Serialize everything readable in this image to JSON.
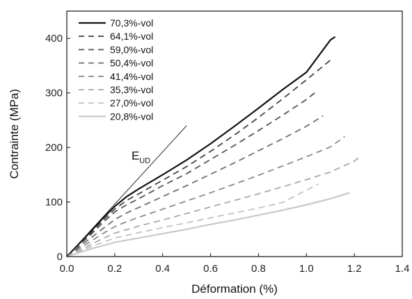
{
  "chart_data": {
    "type": "line",
    "title": "",
    "xlabel": "Déformation (%)",
    "ylabel": "Contrainte (MPa)",
    "xlim": [
      0,
      1.4
    ],
    "ylim": [
      0,
      450
    ],
    "xticks": [
      "0.0",
      "0.2",
      "0.4",
      "0.6",
      "0.8",
      "1.0",
      "1.2",
      "1.4"
    ],
    "yticks": [
      "0",
      "100",
      "200",
      "300",
      "400"
    ],
    "legend_position": "top-left",
    "grid": false,
    "series": [
      {
        "name": "70,3%-vol",
        "color": "#111111",
        "dash": "solid",
        "x": [
          0,
          0.05,
          0.1,
          0.15,
          0.2,
          0.25,
          0.3,
          0.4,
          0.5,
          0.6,
          0.7,
          0.8,
          0.9,
          1.0,
          1.1,
          1.12
        ],
        "y": [
          0,
          23,
          46,
          70,
          92,
          110,
          124,
          150,
          177,
          207,
          239,
          272,
          306,
          338,
          397,
          403
        ]
      },
      {
        "name": "64,1%-vol",
        "color": "#444444",
        "dash": "dashed",
        "x": [
          0,
          0.05,
          0.1,
          0.15,
          0.2,
          0.25,
          0.3,
          0.4,
          0.5,
          0.6,
          0.7,
          0.8,
          0.9,
          1.0,
          1.1
        ],
        "y": [
          0,
          21,
          43,
          66,
          87,
          103,
          115,
          140,
          165,
          193,
          223,
          255,
          289,
          324,
          360
        ]
      },
      {
        "name": "59,0%-vol",
        "color": "#555555",
        "dash": "dashed",
        "x": [
          0,
          0.05,
          0.1,
          0.15,
          0.2,
          0.25,
          0.3,
          0.4,
          0.5,
          0.6,
          0.7,
          0.8,
          0.9,
          1.0,
          1.04
        ],
        "y": [
          0,
          20,
          40,
          62,
          82,
          95,
          106,
          130,
          152,
          178,
          204,
          231,
          259,
          288,
          302
        ]
      },
      {
        "name": "50,4%-vol",
        "color": "#6e6e6e",
        "dash": "dashed",
        "x": [
          0,
          0.05,
          0.1,
          0.15,
          0.2,
          0.25,
          0.3,
          0.4,
          0.5,
          0.6,
          0.7,
          0.8,
          0.9,
          1.0,
          1.07
        ],
        "y": [
          0,
          17,
          34,
          51,
          68,
          80,
          90,
          110,
          130,
          151,
          172,
          194,
          216,
          239,
          258
        ]
      },
      {
        "name": "41,4%-vol",
        "color": "#8a8a8a",
        "dash": "dashed",
        "x": [
          0,
          0.05,
          0.1,
          0.15,
          0.2,
          0.25,
          0.3,
          0.4,
          0.5,
          0.6,
          0.7,
          0.8,
          0.9,
          1.0,
          1.1,
          1.16
        ],
        "y": [
          0,
          14,
          28,
          42,
          55,
          64,
          72,
          87,
          102,
          117,
          133,
          149,
          166,
          183,
          201,
          220
        ]
      },
      {
        "name": "35,3%-vol",
        "color": "#a9a9a9",
        "dash": "dashed",
        "x": [
          0,
          0.05,
          0.1,
          0.15,
          0.2,
          0.3,
          0.4,
          0.5,
          0.6,
          0.7,
          0.8,
          0.9,
          1.0,
          1.1,
          1.2,
          1.22
        ],
        "y": [
          0,
          11,
          22,
          33,
          43,
          56,
          67,
          79,
          91,
          103,
          115,
          128,
          141,
          155,
          175,
          182
        ]
      },
      {
        "name": "27,0%-vol",
        "color": "#c2c2c2",
        "dash": "dashed",
        "x": [
          0,
          0.05,
          0.1,
          0.15,
          0.2,
          0.3,
          0.4,
          0.5,
          0.6,
          0.7,
          0.8,
          0.9,
          1.0,
          1.05
        ],
        "y": [
          0,
          9,
          18,
          26,
          34,
          44,
          53,
          62,
          71,
          80,
          89,
          99,
          122,
          133
        ]
      },
      {
        "name": "20,8%-vol",
        "color": "#c8c8c8",
        "dash": "solid",
        "x": [
          0,
          0.1,
          0.2,
          0.3,
          0.4,
          0.5,
          0.6,
          0.7,
          0.8,
          0.9,
          1.0,
          1.1,
          1.18
        ],
        "y": [
          0,
          14,
          26,
          34,
          42,
          50,
          59,
          67,
          76,
          85,
          95,
          106,
          117
        ]
      }
    ],
    "annotations": [
      {
        "text": "E",
        "subscript": "UD",
        "type": "reference-line",
        "line_x": [
          0,
          0.5
        ],
        "line_y": [
          0,
          240
        ],
        "label_x": 0.27,
        "label_y": 178
      }
    ]
  }
}
